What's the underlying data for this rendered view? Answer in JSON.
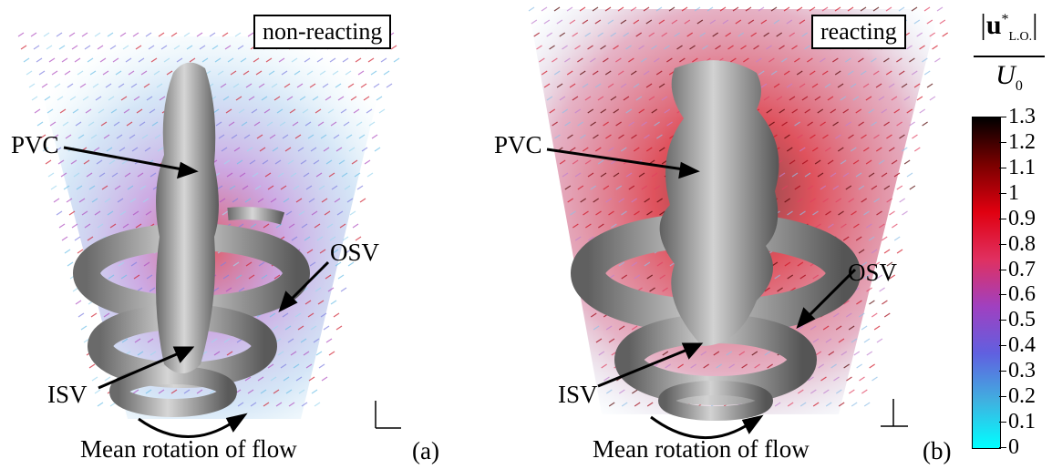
{
  "panel_a": {
    "box_label": "non-reacting",
    "labels": {
      "pvc": "PVC",
      "osv": "OSV",
      "isv": "ISV"
    },
    "caption": "Mean rotation of flow",
    "tag": "(a)"
  },
  "panel_b": {
    "box_label": "reacting",
    "labels": {
      "pvc": "PVC",
      "osv": "OSV",
      "isv": "ISV"
    },
    "caption": "Mean rotation of flow",
    "tag": "(b)"
  },
  "colorbar": {
    "symbol_top": "u",
    "superscript": "*",
    "subscript": "L.O.",
    "symbol_bottom": "U",
    "bottom_subscript": "0",
    "ticks": [
      "1.3",
      "1.2",
      "1.1",
      "1",
      "0.9",
      "0.8",
      "0.7",
      "0.6",
      "0.5",
      "0.4",
      "0.3",
      "0.2",
      "0.1",
      "0"
    ],
    "colors": [
      "#000000",
      "#7a0000",
      "#e00010",
      "#e03060",
      "#a040c0",
      "#6060e0",
      "#40b0e0",
      "#00ffff"
    ]
  }
}
